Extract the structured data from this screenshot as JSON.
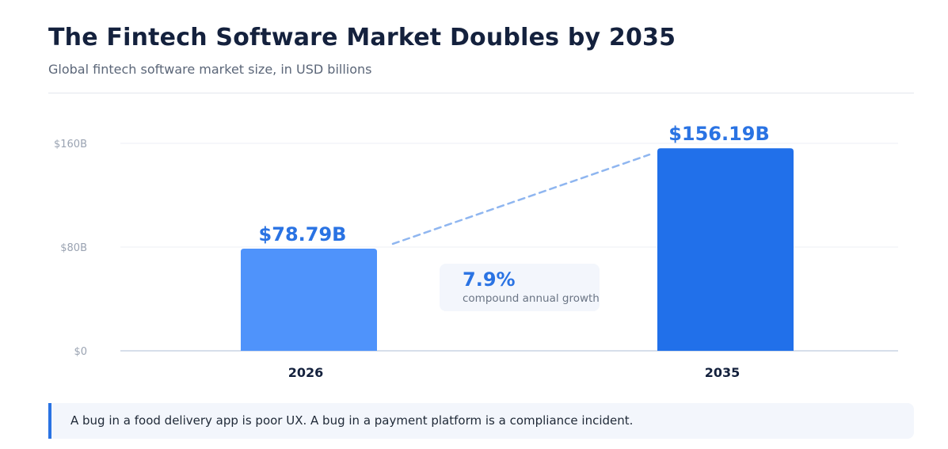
{
  "header": {
    "title": "The Fintech Software Market Doubles by 2035",
    "subtitle": "Global fintech software market size, in USD billions"
  },
  "chart_data": {
    "type": "bar",
    "categories": [
      "2026",
      "2035"
    ],
    "values": [
      78.79,
      156.19
    ],
    "data_labels": [
      "$78.79B",
      "$156.19B"
    ],
    "bar_colors": [
      "#4f93fb",
      "#2170ea"
    ],
    "ylim": [
      0,
      160
    ],
    "yticks": [
      {
        "value": 0,
        "label": "$0"
      },
      {
        "value": 80,
        "label": "$80B"
      },
      {
        "value": 160,
        "label": "$160B"
      }
    ],
    "grid": true,
    "legend": "none",
    "annotation": {
      "value": "7.9%",
      "label": "compound annual growth"
    }
  },
  "callout": {
    "text": "A bug in a food delivery app is poor UX. A bug in a payment platform is a compliance incident."
  },
  "colors": {
    "accent": "#2a73e3",
    "title": "#14213d",
    "connector": "#8fb6f0"
  }
}
